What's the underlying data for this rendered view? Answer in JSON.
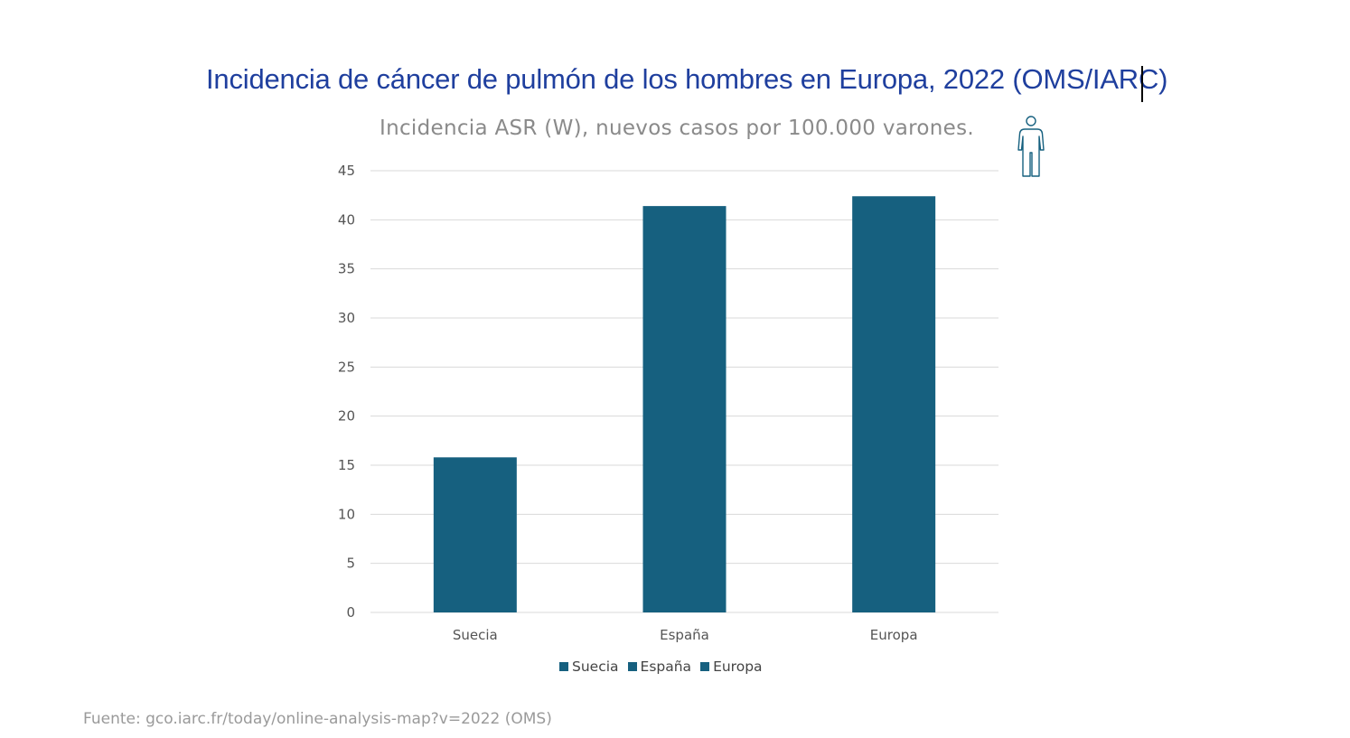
{
  "slide": {
    "title": "Incidencia de cáncer de pulmón de los hombres en Europa, 2022 (OMS/IARC)",
    "source": "Fuente: gco.iarc.fr/today/online-analysis-map?v=2022 (OMS)"
  },
  "icons": {
    "person": "person-outline-icon"
  },
  "colors": {
    "title": "#1f3f9e",
    "bar": "#16607f",
    "grid": "#d9d9d9",
    "subtitle": "#8a8a8a",
    "icon": "#16607f"
  },
  "chart_data": {
    "type": "bar",
    "title": "Incidencia ASR (W), nuevos casos por 100.000 varones.",
    "categories": [
      "Suecia",
      "España",
      "Europa"
    ],
    "values": [
      15.8,
      41.4,
      42.4
    ],
    "ylim": [
      0,
      45
    ],
    "yticks": [
      0,
      5,
      10,
      15,
      20,
      25,
      30,
      35,
      40,
      45
    ],
    "ytick_labels": [
      "0",
      "5",
      "10",
      "15",
      "20",
      "25",
      "30",
      "35",
      "40",
      "45"
    ],
    "grid": true,
    "legend": {
      "placement": "bottom",
      "entries": [
        "Suecia",
        "España",
        "Europa"
      ]
    }
  }
}
